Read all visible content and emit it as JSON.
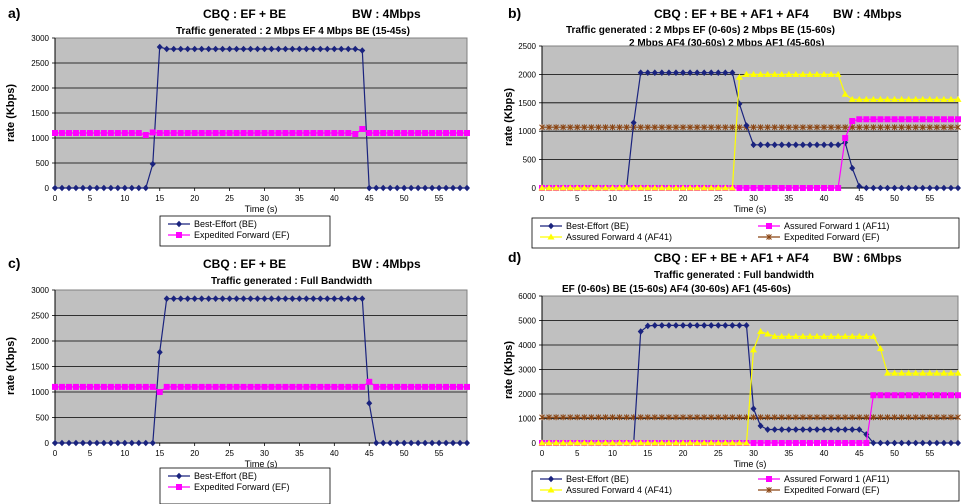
{
  "chart_data": [
    {
      "panel": "a)",
      "type": "line",
      "title": "CBQ : EF + BE",
      "bw": "BW : 4Mbps",
      "subtitles": [
        "Traffic generated :  2 Mbps EF       4 Mbps BE (15-45s)"
      ],
      "xlabel": "Time (s)",
      "ylabel": "rate (Kbps)",
      "xlim": [
        0,
        59
      ],
      "ylim": [
        0,
        3000
      ],
      "xticks": [
        "0",
        "5",
        "10",
        "15",
        "20",
        "25",
        "30",
        "35",
        "40",
        "45",
        "50",
        "55"
      ],
      "yticks": [
        "0",
        "500",
        "1000",
        "1500",
        "2000",
        "2500",
        "3000"
      ],
      "grid": true,
      "legend_position": "bottom",
      "series": [
        {
          "name": "Best-Effort  (BE)",
          "color": "#1a237e",
          "marker": "diamond",
          "points": [
            [
              0,
              0
            ],
            [
              13,
              0
            ],
            [
              14,
              480
            ],
            [
              15,
              2820
            ],
            [
              16,
              2780
            ],
            [
              43,
              2780
            ],
            [
              44,
              2750
            ],
            [
              45,
              0
            ],
            [
              59,
              0
            ]
          ]
        },
        {
          "name": "Expedited Forward  (EF)",
          "color": "#ff00ff",
          "marker": "square",
          "points": [
            [
              0,
              1100
            ],
            [
              12,
              1100
            ],
            [
              13,
              1060
            ],
            [
              14,
              1110
            ],
            [
              15,
              1100
            ],
            [
              42,
              1100
            ],
            [
              43,
              1080
            ],
            [
              44,
              1180
            ],
            [
              45,
              1100
            ],
            [
              59,
              1100
            ]
          ]
        }
      ]
    },
    {
      "panel": "b)",
      "type": "line",
      "title": "CBQ : EF + BE + AF1 + AF4",
      "bw": "BW : 4Mbps",
      "subtitles": [
        "Traffic generated : 2 Mbps EF (0-60s)      2 Mbps BE (15-60s)",
        "2 Mbps AF4 (30-60s)    2 Mbps AF1 (45-60s)"
      ],
      "xlabel": "Time (s)",
      "ylabel": "rate (Kbps)",
      "xlim": [
        0,
        59
      ],
      "ylim": [
        0,
        2500
      ],
      "xticks": [
        "0",
        "5",
        "10",
        "15",
        "20",
        "25",
        "30",
        "35",
        "40",
        "45",
        "50",
        "55"
      ],
      "yticks": [
        "0",
        "500",
        "1000",
        "1500",
        "2000",
        "2500"
      ],
      "grid": true,
      "legend_position": "bottom",
      "series": [
        {
          "name": "Best-Effort  (BE)",
          "color": "#1a237e",
          "marker": "diamond",
          "points": [
            [
              0,
              0
            ],
            [
              12,
              0
            ],
            [
              13,
              1150
            ],
            [
              14,
              2030
            ],
            [
              27,
              2030
            ],
            [
              28,
              1480
            ],
            [
              29,
              1100
            ],
            [
              30,
              760
            ],
            [
              42,
              760
            ],
            [
              43,
              800
            ],
            [
              44,
              350
            ],
            [
              45,
              30
            ],
            [
              46,
              0
            ],
            [
              59,
              0
            ]
          ]
        },
        {
          "name": "Assured Forward 1  (AF11)",
          "color": "#ff00ff",
          "marker": "square",
          "points": [
            [
              0,
              0
            ],
            [
              42,
              0
            ],
            [
              43,
              880
            ],
            [
              44,
              1180
            ],
            [
              45,
              1210
            ],
            [
              59,
              1210
            ]
          ]
        },
        {
          "name": "Assured Forward 4  (AF41)",
          "color": "#ffff00",
          "marker": "triangle",
          "points": [
            [
              0,
              0
            ],
            [
              27,
              0
            ],
            [
              28,
              1950
            ],
            [
              29,
              2000
            ],
            [
              42,
              2000
            ],
            [
              43,
              1650
            ],
            [
              44,
              1560
            ],
            [
              59,
              1560
            ]
          ]
        },
        {
          "name": "Expedited Forward  (EF)",
          "color": "#8b4513",
          "marker": "x",
          "points": [
            [
              0,
              1070
            ],
            [
              59,
              1070
            ]
          ]
        }
      ]
    },
    {
      "panel": "c)",
      "type": "line",
      "title": "CBQ : EF + BE",
      "bw": "BW : 4Mbps",
      "subtitles": [
        "Traffic generated :   Full Bandwidth"
      ],
      "xlabel": "Time (s)",
      "ylabel": "rate (Kbps)",
      "xlim": [
        0,
        59
      ],
      "ylim": [
        0,
        3000
      ],
      "xticks": [
        "0",
        "5",
        "10",
        "15",
        "20",
        "25",
        "30",
        "35",
        "40",
        "45",
        "50",
        "55"
      ],
      "yticks": [
        "0",
        "500",
        "1000",
        "1500",
        "2000",
        "2500",
        "3000"
      ],
      "grid": true,
      "legend_position": "bottom",
      "series": [
        {
          "name": "Best-Effort  (BE)",
          "color": "#1a237e",
          "marker": "diamond",
          "points": [
            [
              0,
              0
            ],
            [
              14,
              0
            ],
            [
              15,
              1780
            ],
            [
              16,
              2830
            ],
            [
              44,
              2830
            ],
            [
              45,
              780
            ],
            [
              46,
              0
            ],
            [
              59,
              0
            ]
          ]
        },
        {
          "name": "Expedited Forward  (EF)",
          "color": "#ff00ff",
          "marker": "square",
          "points": [
            [
              0,
              1100
            ],
            [
              14,
              1100
            ],
            [
              15,
              1000
            ],
            [
              16,
              1100
            ],
            [
              44,
              1100
            ],
            [
              45,
              1200
            ],
            [
              46,
              1100
            ],
            [
              59,
              1100
            ]
          ]
        }
      ]
    },
    {
      "panel": "d)",
      "type": "line",
      "title": "CBQ : EF + BE + AF1 + AF4",
      "bw": "BW : 6Mbps",
      "subtitles": [
        "Traffic generated : Full bandwidth",
        "EF  (0-60s)     BE  (15-60s)            AF4  (30-60s)     AF1  (45-60s)"
      ],
      "xlabel": "Time (s)",
      "ylabel": "rate (Kbps)",
      "xlim": [
        0,
        59
      ],
      "ylim": [
        0,
        6000
      ],
      "xticks": [
        "0",
        "5",
        "10",
        "15",
        "20",
        "25",
        "30",
        "35",
        "40",
        "45",
        "50",
        "55"
      ],
      "yticks": [
        "0",
        "1000",
        "2000",
        "3000",
        "4000",
        "5000",
        "6000"
      ],
      "grid": true,
      "legend_position": "bottom",
      "series": [
        {
          "name": "Best-Effort  (BE)",
          "color": "#1a237e",
          "marker": "diamond",
          "points": [
            [
              0,
              0
            ],
            [
              13,
              0
            ],
            [
              14,
              4550
            ],
            [
              15,
              4780
            ],
            [
              16,
              4800
            ],
            [
              29,
              4800
            ],
            [
              30,
              1400
            ],
            [
              31,
              700
            ],
            [
              32,
              550
            ],
            [
              45,
              550
            ],
            [
              46,
              350
            ],
            [
              47,
              0
            ],
            [
              59,
              0
            ]
          ]
        },
        {
          "name": "Assured Forward 1  (AF11)",
          "color": "#ff00ff",
          "marker": "square",
          "points": [
            [
              0,
              0
            ],
            [
              46,
              0
            ],
            [
              47,
              1950
            ],
            [
              59,
              1950
            ]
          ]
        },
        {
          "name": "Assured Forward 4  (AF41)",
          "color": "#ffff00",
          "marker": "triangle",
          "points": [
            [
              0,
              0
            ],
            [
              29,
              0
            ],
            [
              30,
              3800
            ],
            [
              31,
              4550
            ],
            [
              32,
              4450
            ],
            [
              33,
              4350
            ],
            [
              47,
              4350
            ],
            [
              48,
              3850
            ],
            [
              49,
              2850
            ],
            [
              59,
              2850
            ]
          ]
        },
        {
          "name": "Expedited Forward  (EF)",
          "color": "#8b4513",
          "marker": "x",
          "points": [
            [
              0,
              1050
            ],
            [
              59,
              1050
            ]
          ]
        }
      ]
    }
  ]
}
